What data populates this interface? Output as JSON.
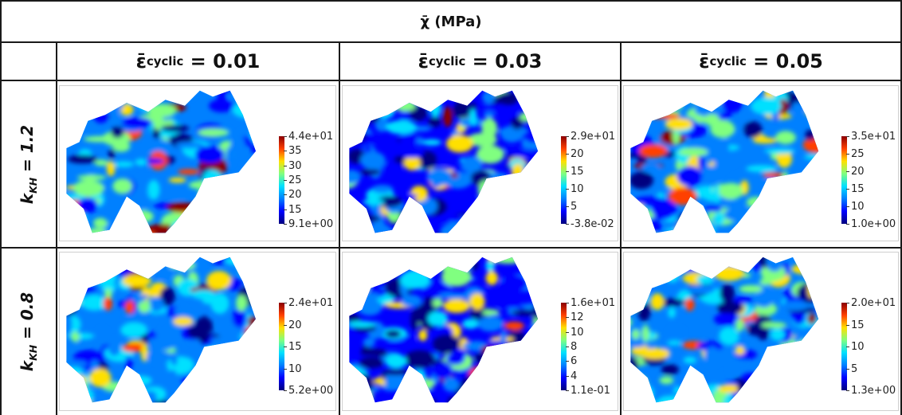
{
  "title": "χ̄ (MPa)",
  "columns": [
    {
      "symbol": "ε̄",
      "sub": "cyclic",
      "rest": " = 0.01"
    },
    {
      "symbol": "ε̄",
      "sub": "cyclic",
      "rest": " = 0.03"
    },
    {
      "symbol": "ε̄",
      "sub": "cyclic",
      "rest": " = 0.05"
    }
  ],
  "rows": [
    {
      "k": "k",
      "sub": "KH",
      "rest": " = 1.2"
    },
    {
      "k": "k",
      "sub": "KH",
      "rest": " = 0.8"
    }
  ],
  "colorbars": [
    {
      "max": "4.4e+01",
      "min": "9.1e+00",
      "ticks": [
        "35",
        "30",
        "25",
        "20",
        "15"
      ]
    },
    {
      "max": "2.9e+01",
      "min": "-3.8e-02",
      "ticks": [
        "20",
        "15",
        "10",
        "5"
      ]
    },
    {
      "max": "3.5e+01",
      "min": "1.0e+00",
      "ticks": [
        "25",
        "20",
        "15",
        "10"
      ]
    },
    {
      "max": "2.4e+01",
      "min": "5.2e+00",
      "ticks": [
        "20",
        "15",
        "10"
      ]
    },
    {
      "max": "1.6e+01",
      "min": "1.1e-01",
      "ticks": [
        "12",
        "10",
        "8",
        "6",
        "4"
      ]
    },
    {
      "max": "2.0e+01",
      "min": "1.3e+00",
      "ticks": [
        "15",
        "10",
        "5"
      ]
    }
  ],
  "colormap": [
    "#00007f",
    "#0000ff",
    "#0080ff",
    "#00e0ff",
    "#80ff80",
    "#ffe000",
    "#ff4000",
    "#8b0000"
  ]
}
